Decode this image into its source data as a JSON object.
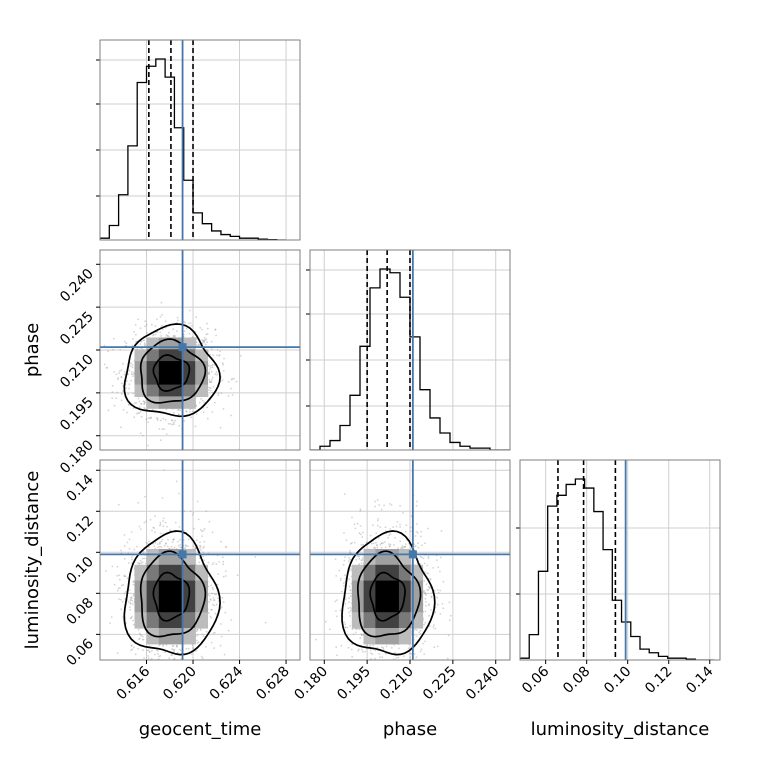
{
  "chart_data": {
    "type": "corner",
    "parameters": [
      "geocent_time",
      "phase",
      "luminosity_distance"
    ],
    "truths": {
      "geocent_time": 0.6191,
      "phase": 0.211,
      "luminosity_distance": 0.099
    },
    "truth_color": "#4477aa",
    "quantiles": {
      "geocent_time": [
        0.6162,
        0.6181,
        0.62
      ],
      "phase": [
        0.195,
        0.202,
        0.21
      ],
      "luminosity_distance": [
        0.066,
        0.0785,
        0.094
      ]
    },
    "ranges": {
      "geocent_time": [
        0.612,
        0.6292
      ],
      "phase": [
        0.175,
        0.245
      ],
      "luminosity_distance": [
        0.0475,
        0.145
      ]
    },
    "ticks": {
      "geocent_time": [
        "0.616",
        "0.620",
        "0.624",
        "0.628"
      ],
      "phase": [
        "0.180",
        "0.195",
        "0.210",
        "0.225",
        "0.240"
      ],
      "luminosity_distance_bottom": [
        "0.06",
        "0.08",
        "0.10",
        "0.12",
        "0.14"
      ],
      "luminosity_distance_left": [
        "0.06",
        "0.08",
        "0.10",
        "0.12",
        "0.14"
      ]
    },
    "histograms": {
      "geocent_time": {
        "edges": [
          0.612,
          0.6128,
          0.6136,
          0.6144,
          0.6152,
          0.616,
          0.6168,
          0.6176,
          0.6184,
          0.6192,
          0.62,
          0.6208,
          0.6216,
          0.6224,
          0.6232,
          0.624,
          0.6248,
          0.6256,
          0.6264,
          0.6272,
          0.628
        ],
        "counts": [
          0.01,
          0.08,
          0.25,
          0.52,
          0.87,
          0.96,
          1.0,
          0.9,
          0.62,
          0.33,
          0.15,
          0.09,
          0.05,
          0.03,
          0.02,
          0.01,
          0.01,
          0.005,
          0.002,
          0.0
        ]
      },
      "phase": {
        "edges": [
          0.175,
          0.1785,
          0.182,
          0.1855,
          0.189,
          0.1925,
          0.196,
          0.1995,
          0.203,
          0.2065,
          0.21,
          0.2135,
          0.217,
          0.2205,
          0.224,
          0.2275,
          0.231,
          0.2345,
          0.238,
          0.2415,
          0.245
        ],
        "counts": [
          0.0,
          0.02,
          0.05,
          0.13,
          0.29,
          0.55,
          0.86,
          0.96,
          0.94,
          0.81,
          0.6,
          0.32,
          0.17,
          0.09,
          0.04,
          0.02,
          0.01,
          0.01,
          0.0,
          0.0
        ]
      },
      "luminosity_distance": {
        "edges": [
          0.0475,
          0.052,
          0.0565,
          0.061,
          0.0655,
          0.07,
          0.0745,
          0.079,
          0.0835,
          0.088,
          0.0925,
          0.097,
          0.1015,
          0.106,
          0.1105,
          0.115,
          0.1195,
          0.124,
          0.1285,
          0.133,
          0.1375,
          0.142
        ],
        "counts": [
          0.01,
          0.14,
          0.49,
          0.85,
          0.91,
          0.97,
          1.0,
          0.95,
          0.82,
          0.61,
          0.33,
          0.21,
          0.13,
          0.06,
          0.04,
          0.02,
          0.01,
          0.01,
          0.005,
          0.0,
          0.0
        ]
      }
    },
    "grid": true,
    "point_cloud_color": "#a0a0a0",
    "contour_color": "#000000"
  }
}
